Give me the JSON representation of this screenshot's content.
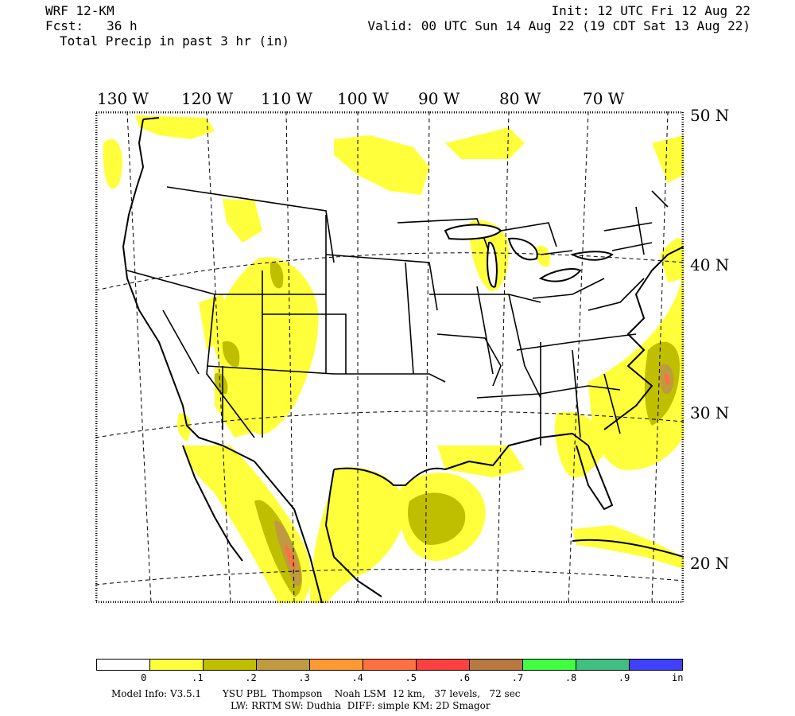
{
  "header": {
    "model": "WRF 12-KM",
    "fcst": "Fcst:   36 h",
    "field": "Total Precip in past 3 hr (in)",
    "init": "Init: 12 UTC Fri 12 Aug 22",
    "valid": "Valid: 00 UTC Sun 14 Aug 22 (19 CDT Sat 13 Aug 22)"
  },
  "longitude_labels": [
    "130 W",
    "120 W",
    "110 W",
    "100 W",
    "90 W",
    "80 W",
    "70 W"
  ],
  "latitude_labels": [
    "50 N",
    "40 N",
    "30 N",
    "20 N"
  ],
  "colorbar": {
    "colors": [
      "#ffffff",
      "#ffff3c",
      "#bfbf00",
      "#c09a40",
      "#ff9933",
      "#ff7040",
      "#ff4040",
      "#b87840",
      "#40ff40",
      "#40c080",
      "#4040ff"
    ],
    "labels": [
      "0",
      ".1",
      ".2",
      ".3",
      ".4",
      ".5",
      ".6",
      ".7",
      ".8",
      ".9",
      "in"
    ]
  },
  "footer": {
    "line1": "Model Info: V3.5.1       YSU PBL  Thompson    Noah LSM  12 km,   37 levels,   72 sec",
    "line2": "LW: RRTM SW: Dudhia  DIFF: simple KM: 2D Smagor"
  }
}
